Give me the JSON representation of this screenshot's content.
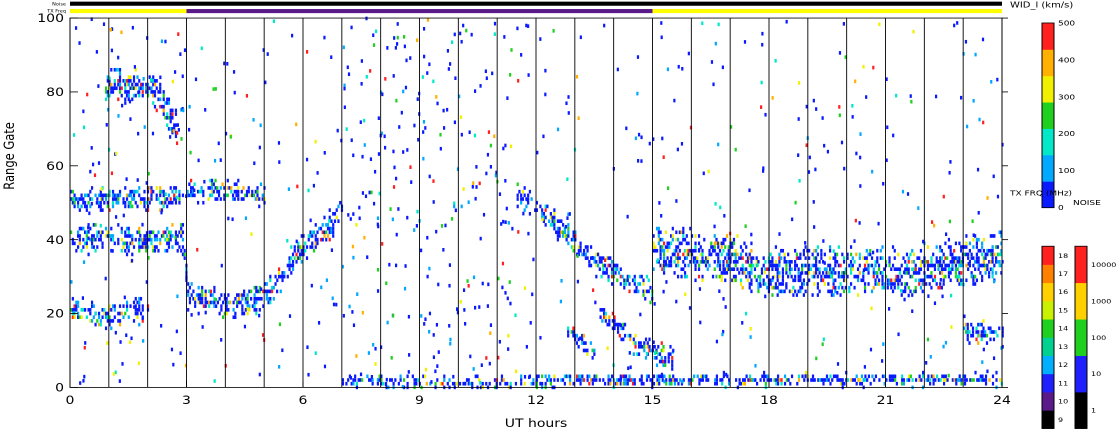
{
  "chart_data": {
    "type": "heatmap",
    "title": "",
    "xlabel": "UT hours",
    "ylabel": "Range Gate",
    "xlim": [
      0,
      24
    ],
    "ylim": [
      0,
      100
    ],
    "x_ticks": [
      "0",
      "3",
      "6",
      "9",
      "12",
      "15",
      "18",
      "21",
      "24"
    ],
    "y_ticks": [
      "0",
      "20",
      "40",
      "60",
      "80",
      "100"
    ],
    "grid": "vertical lines each hour",
    "top_strips": {
      "noise_label": "Noise",
      "txfreq_label": "TX Freq",
      "txfreq_segments": [
        {
          "start": 0,
          "end": 3,
          "color": "#ffff00"
        },
        {
          "start": 3,
          "end": 15,
          "color": "#5a1a8a"
        },
        {
          "start": 15,
          "end": 24,
          "color": "#ffff00"
        }
      ]
    },
    "width_colorbar": {
      "label": "WID_l (km/s)",
      "range": [
        0,
        500
      ],
      "ticks": [
        "0",
        "100",
        "200",
        "300",
        "400",
        "500"
      ],
      "colors": [
        "#0a1aff",
        "#00a8ff",
        "#00e8c8",
        "#20d020",
        "#f0f000",
        "#ffb000",
        "#ff2020"
      ]
    },
    "txfreq_colorbar": {
      "label": "TX FRQ (MHz)",
      "ticks": [
        "9",
        "10",
        "11",
        "12",
        "13",
        "14",
        "15",
        "16",
        "17",
        "18"
      ],
      "colors": [
        "#000000",
        "#5a1a8a",
        "#2020ff",
        "#00b0ff",
        "#00d090",
        "#20d020",
        "#c8f000",
        "#ffd000",
        "#ff8000",
        "#ff2020"
      ]
    },
    "noise_colorbar": {
      "label": "NOISE",
      "ticks": [
        "1",
        "10",
        "100",
        "1000",
        "10000"
      ],
      "colors": [
        "#000000",
        "#2020ff",
        "#20d020",
        "#ffd000",
        "#ff2020"
      ]
    },
    "series": [
      {
        "name": "",
        "x": [
          0.0,
          1.0,
          2.0,
          2.9,
          3.0,
          4.0,
          5.0,
          6.0,
          7.0
        ],
        "values": [
          40,
          40,
          40,
          40,
          25,
          22,
          25,
          38,
          47
        ]
      },
      {
        "name": "",
        "x": [
          0.0,
          1.5,
          2.9
        ],
        "values": [
          51,
          51,
          51
        ]
      },
      {
        "name": "",
        "x": [
          0.0,
          1.0,
          2.0
        ],
        "values": [
          21,
          19,
          21
        ]
      },
      {
        "name": "",
        "x": [
          3.0,
          4.0,
          5.0
        ],
        "values": [
          53,
          53,
          52
        ]
      },
      {
        "name": "",
        "x": [
          0.9,
          2.1,
          2.7
        ],
        "values": [
          82,
          81,
          72
        ]
      },
      {
        "name": "",
        "x": [
          11.5,
          12.5,
          13.5,
          14.5,
          15.0
        ],
        "values": [
          52,
          44,
          34,
          28,
          26
        ]
      },
      {
        "name": "",
        "x": [
          13.5,
          14.5,
          15.5
        ],
        "values": [
          22,
          12,
          8
        ]
      },
      {
        "name": "",
        "x": [
          12.8,
          13.5
        ],
        "values": [
          15,
          9
        ]
      },
      {
        "name": "",
        "x": [
          15.0,
          17.0,
          18.0,
          19.0,
          21.0,
          23.0,
          24.0
        ],
        "values": [
          37,
          35,
          31,
          32,
          31,
          34,
          36
        ]
      },
      {
        "name": "",
        "x": [
          7.0,
          10.0,
          13.0,
          16.0,
          20.0,
          24.0
        ],
        "values": [
          2,
          1,
          2,
          2,
          2,
          2
        ]
      },
      {
        "name": "",
        "x": [
          23.0,
          24.0
        ],
        "values": [
          15,
          14
        ]
      }
    ]
  }
}
